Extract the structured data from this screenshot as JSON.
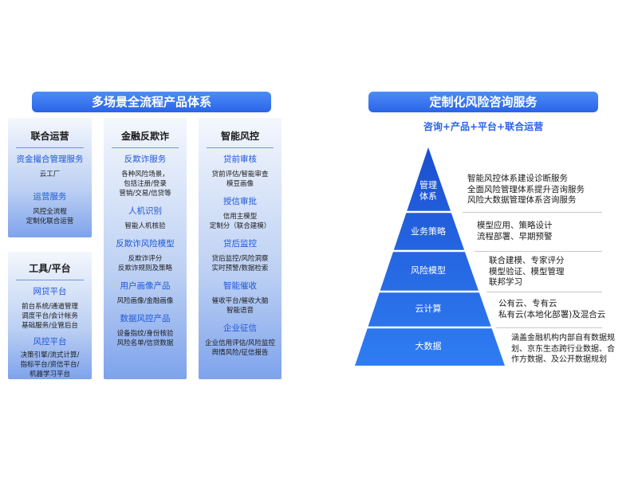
{
  "left_banner": "多场景全流程产品体系",
  "right_banner": "定制化风险咨询服务",
  "subtitle": "咨询+产品+平台+联合运营",
  "col1": {
    "title": "联合运营",
    "sections": [
      {
        "title": "资金撮合管理服务",
        "lines": [
          "云工厂"
        ]
      },
      {
        "title": "运营服务",
        "lines": [
          "风控全流程",
          "定制化联合运营"
        ]
      }
    ]
  },
  "col4": {
    "title": "工具/平台",
    "sections": [
      {
        "title": "网贷平台",
        "lines": [
          "前台系统/通道管理",
          "调度平台/会计帐务",
          "基础服务/业管后台"
        ]
      },
      {
        "title": "风控平台",
        "lines": [
          "决策引擎/流式计算/",
          "指标平台/资信平台/",
          "机器学习平台"
        ]
      }
    ]
  },
  "col2": {
    "title": "金融反欺诈",
    "sections": [
      {
        "title": "反欺诈服务",
        "lines": [
          "各种风险场景，",
          "包括注册/登录",
          "营销/交易/信贷等"
        ]
      },
      {
        "title": "人机识别",
        "lines": [
          "智能人机核验"
        ]
      },
      {
        "title": "反欺诈风险模型",
        "lines": [
          "反欺诈评分",
          "反欺诈规则及策略"
        ]
      },
      {
        "title": "用户画像产品",
        "lines": [
          "风险画像/金融画像"
        ]
      },
      {
        "title": "数据风控产品",
        "lines": [
          "设备指纹/身份核验",
          "风险名单/信贷数据"
        ]
      }
    ]
  },
  "col3": {
    "title": "智能风控",
    "sections": [
      {
        "title": "贷前审核",
        "lines": [
          "贷前评估/智能审查",
          "模豆画像"
        ]
      },
      {
        "title": "授信审批",
        "lines": [
          "信用主模型",
          "定制分（联合建模）"
        ]
      },
      {
        "title": "贷后监控",
        "lines": [
          "贷后监控/风险洞察",
          "实时预警/数据检索"
        ]
      },
      {
        "title": "智能催收",
        "lines": [
          "催收平台/催收大脑",
          "智能语音"
        ]
      },
      {
        "title": "企业征信",
        "lines": [
          "企业信用评估/风险监控",
          "舆情风险/征信报告"
        ]
      }
    ]
  },
  "pyramid": [
    {
      "label": [
        "管理",
        "体系"
      ],
      "desc": [
        "智能风控体系建设诊断服务",
        "全面风险管理体系提升咨询服务",
        "风险大数据管理体系咨询服务"
      ]
    },
    {
      "label": [
        "业务策略"
      ],
      "desc": [
        "模型应用、策略设计",
        "流程部署、早期预警"
      ]
    },
    {
      "label": [
        "风险模型"
      ],
      "desc": [
        "联合建模、专家评分",
        "模型验证、模型管理",
        "联邦学习"
      ]
    },
    {
      "label": [
        "云计算"
      ],
      "desc": [
        "公有云、专有云",
        "私有云(本地化部署)及混合云"
      ]
    },
    {
      "label": [
        "大数据"
      ],
      "desc": [
        "涵盖金融机构内部自有数据规",
        "划、京东生态跨行业数据、合",
        "作方数据、及公开数据规划"
      ]
    }
  ],
  "colors": {
    "accent": "#2a64e8",
    "section_title": "#1f58d6",
    "pyramid_top": "#1b4fd0",
    "pyramid_bottom": "#2f7df2"
  }
}
